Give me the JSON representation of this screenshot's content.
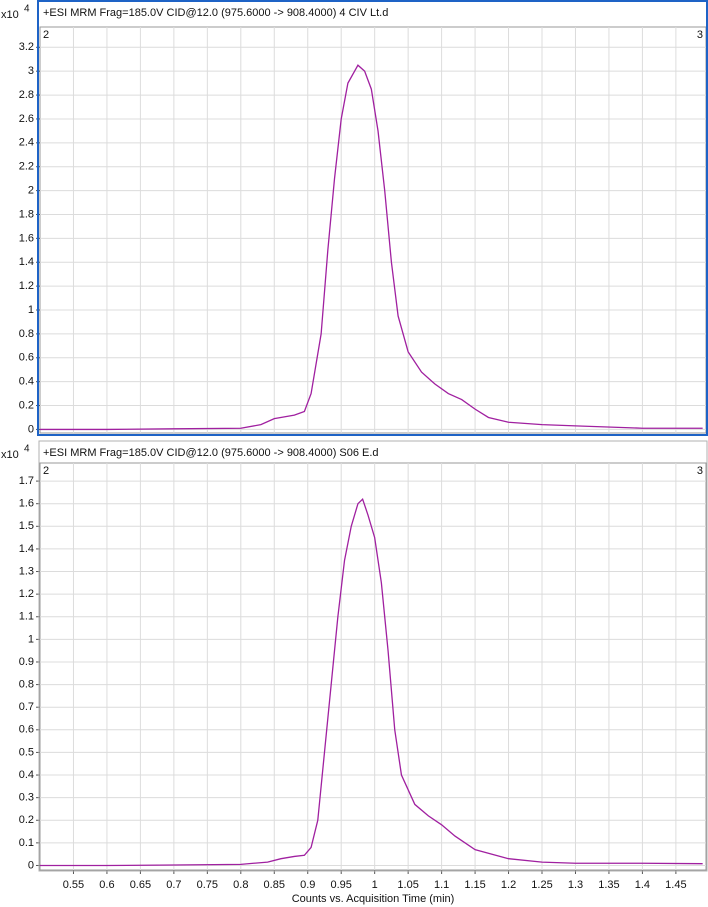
{
  "chart_data": [
    {
      "type": "line",
      "title": "+ESI MRM Frag=185.0V CID@12.0 (975.6000 -> 908.4000) 4 CIV Lt.d",
      "multiplier": {
        "base": "x10",
        "exponent": "4"
      },
      "corner_labels": [
        "2",
        "3"
      ],
      "x": [
        0.5,
        0.6,
        0.7,
        0.8,
        0.83,
        0.85,
        0.88,
        0.895,
        0.905,
        0.92,
        0.93,
        0.94,
        0.95,
        0.96,
        0.975,
        0.985,
        0.995,
        1.005,
        1.015,
        1.025,
        1.035,
        1.05,
        1.07,
        1.09,
        1.11,
        1.13,
        1.15,
        1.17,
        1.2,
        1.25,
        1.3,
        1.4,
        1.49
      ],
      "values": [
        0.0,
        0.0,
        0.005,
        0.01,
        0.04,
        0.09,
        0.12,
        0.15,
        0.3,
        0.8,
        1.5,
        2.1,
        2.6,
        2.9,
        3.05,
        3.0,
        2.85,
        2.5,
        2.0,
        1.4,
        0.95,
        0.65,
        0.48,
        0.38,
        0.3,
        0.25,
        0.17,
        0.1,
        0.06,
        0.04,
        0.03,
        0.01,
        0.01
      ],
      "color": "#a020a0",
      "xlim": [
        0.5,
        1.495
      ],
      "ylim": [
        -0.03,
        3.37
      ],
      "xticks": [
        0.55,
        0.6,
        0.65,
        0.7,
        0.75,
        0.8,
        0.85,
        0.9,
        0.95,
        1,
        1.05,
        1.1,
        1.15,
        1.2,
        1.25,
        1.3,
        1.35,
        1.4,
        1.45
      ],
      "yticks": [
        0,
        0.2,
        0.4,
        0.6,
        0.8,
        1,
        1.2,
        1.4,
        1.6,
        1.8,
        2,
        2.2,
        2.4,
        2.6,
        2.8,
        3,
        3.2
      ],
      "grid": true
    },
    {
      "type": "line",
      "title": "+ESI MRM Frag=185.0V CID@12.0 (975.6000 -> 908.4000) S06 E.d",
      "multiplier": {
        "base": "x10",
        "exponent": "4"
      },
      "corner_labels": [
        "2",
        "3"
      ],
      "x": [
        0.5,
        0.6,
        0.7,
        0.8,
        0.84,
        0.86,
        0.88,
        0.895,
        0.905,
        0.915,
        0.925,
        0.935,
        0.945,
        0.955,
        0.965,
        0.975,
        0.982,
        0.99,
        1.0,
        1.01,
        1.02,
        1.03,
        1.04,
        1.06,
        1.08,
        1.1,
        1.12,
        1.15,
        1.2,
        1.25,
        1.3,
        1.4,
        1.49
      ],
      "values": [
        0.0,
        0.0,
        0.002,
        0.005,
        0.015,
        0.03,
        0.04,
        0.045,
        0.08,
        0.2,
        0.5,
        0.8,
        1.1,
        1.35,
        1.5,
        1.6,
        1.62,
        1.55,
        1.45,
        1.25,
        0.95,
        0.6,
        0.4,
        0.27,
        0.22,
        0.18,
        0.13,
        0.07,
        0.03,
        0.015,
        0.01,
        0.01,
        0.008
      ],
      "color": "#a020a0",
      "xlim": [
        0.5,
        1.495
      ],
      "ylim": [
        -0.02,
        1.78
      ],
      "xticks": [
        0.55,
        0.6,
        0.65,
        0.7,
        0.75,
        0.8,
        0.85,
        0.9,
        0.95,
        1,
        1.05,
        1.1,
        1.15,
        1.2,
        1.25,
        1.3,
        1.35,
        1.4,
        1.45
      ],
      "yticks": [
        0,
        0.1,
        0.2,
        0.3,
        0.4,
        0.5,
        0.6,
        0.7,
        0.8,
        0.9,
        1,
        1.1,
        1.2,
        1.3,
        1.4,
        1.5,
        1.6,
        1.7
      ],
      "xlabel": "Counts vs. Acquisition Time (min)",
      "grid": true
    }
  ]
}
